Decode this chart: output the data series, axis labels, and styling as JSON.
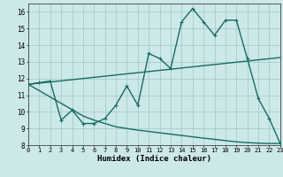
{
  "xlabel": "Humidex (Indice chaleur)",
  "background_color": "#cce8e8",
  "line_color": "#1a6b60",
  "xlim": [
    0,
    23
  ],
  "ylim": [
    8,
    16.5
  ],
  "xticks": [
    0,
    1,
    2,
    3,
    4,
    5,
    6,
    7,
    8,
    9,
    10,
    11,
    12,
    13,
    14,
    15,
    16,
    17,
    18,
    19,
    20,
    21,
    22,
    23
  ],
  "yticks": [
    8,
    9,
    10,
    11,
    12,
    13,
    14,
    15,
    16
  ],
  "grid_color": "#a8cccc",
  "line1_x": [
    0,
    1,
    2,
    3,
    4,
    5,
    6,
    7,
    8,
    9,
    10,
    11,
    12,
    13,
    14,
    15,
    16,
    17,
    18,
    19,
    20,
    21,
    22,
    23
  ],
  "line1_y": [
    11.65,
    11.75,
    11.85,
    9.5,
    10.1,
    9.3,
    9.3,
    9.6,
    10.4,
    11.55,
    10.4,
    13.5,
    13.2,
    12.6,
    15.4,
    16.2,
    15.4,
    14.6,
    15.5,
    15.5,
    13.2,
    10.8,
    9.6,
    8.1
  ],
  "line2_x": [
    0,
    1,
    2,
    3,
    4,
    5,
    6,
    7,
    8,
    9,
    10,
    11,
    12,
    13,
    14,
    15,
    16,
    17,
    18,
    19,
    20,
    21,
    22,
    23
  ],
  "line2_y": [
    11.65,
    11.72,
    11.79,
    11.86,
    11.93,
    12.0,
    12.07,
    12.14,
    12.21,
    12.28,
    12.35,
    12.42,
    12.49,
    12.56,
    12.63,
    12.7,
    12.77,
    12.84,
    12.91,
    12.98,
    13.05,
    13.12,
    13.19,
    13.26
  ],
  "line3_x": [
    0,
    1,
    2,
    3,
    4,
    5,
    6,
    7,
    8,
    9,
    10,
    11,
    12,
    13,
    14,
    15,
    16,
    17,
    18,
    19,
    20,
    21,
    22,
    23
  ],
  "line3_y": [
    11.65,
    11.27,
    10.89,
    10.51,
    10.13,
    9.75,
    9.5,
    9.3,
    9.1,
    9.0,
    8.9,
    8.82,
    8.74,
    8.66,
    8.58,
    8.5,
    8.42,
    8.35,
    8.27,
    8.2,
    8.15,
    8.12,
    8.1,
    8.1
  ],
  "markersize": 3.5,
  "linewidth": 1.0
}
